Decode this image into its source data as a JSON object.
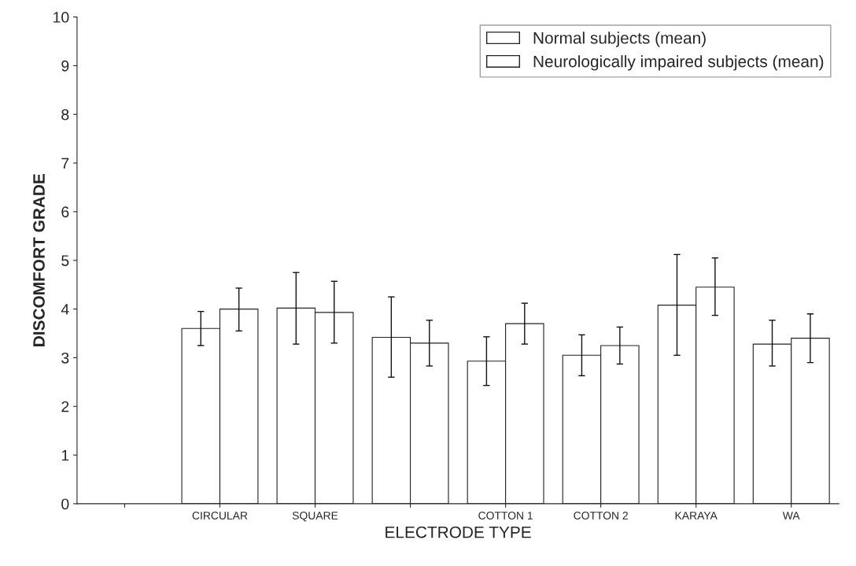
{
  "chart_data": {
    "type": "bar",
    "xlabel": "ELECTRODE TYPE",
    "ylabel": "DISCOMFORT GRADE",
    "categories": [
      null,
      "CIRCULAR",
      "SQUARE",
      null,
      "COTTON 1",
      "COTTON 2",
      "KARAYA",
      "WA"
    ],
    "series": [
      {
        "name": "Normal subjects (mean)",
        "color": "#ffffff",
        "values": [
          null,
          3.6,
          4.02,
          3.42,
          2.93,
          3.05,
          4.08,
          3.28
        ],
        "errors": [
          null,
          [
            3.25,
            3.95
          ],
          [
            3.28,
            4.75
          ],
          [
            2.6,
            4.25
          ],
          [
            2.43,
            3.43
          ],
          [
            2.63,
            3.47
          ],
          [
            3.05,
            5.12
          ],
          [
            2.83,
            3.77
          ]
        ]
      },
      {
        "name": "Neurologically impaired subjects (mean)",
        "color": "#ffffff",
        "values": [
          null,
          4.0,
          3.93,
          3.3,
          3.7,
          3.25,
          4.45,
          3.4
        ],
        "errors": [
          null,
          [
            3.55,
            4.43
          ],
          [
            3.3,
            4.57
          ],
          [
            2.83,
            3.77
          ],
          [
            3.28,
            4.12
          ],
          [
            2.87,
            3.63
          ],
          [
            3.87,
            5.05
          ],
          [
            2.9,
            3.9
          ]
        ]
      }
    ],
    "ylim": [
      0,
      10
    ],
    "yticks": [
      0,
      1,
      2,
      3,
      4,
      5,
      6,
      7,
      8,
      9,
      10
    ],
    "grid": false,
    "legend": "top right"
  }
}
